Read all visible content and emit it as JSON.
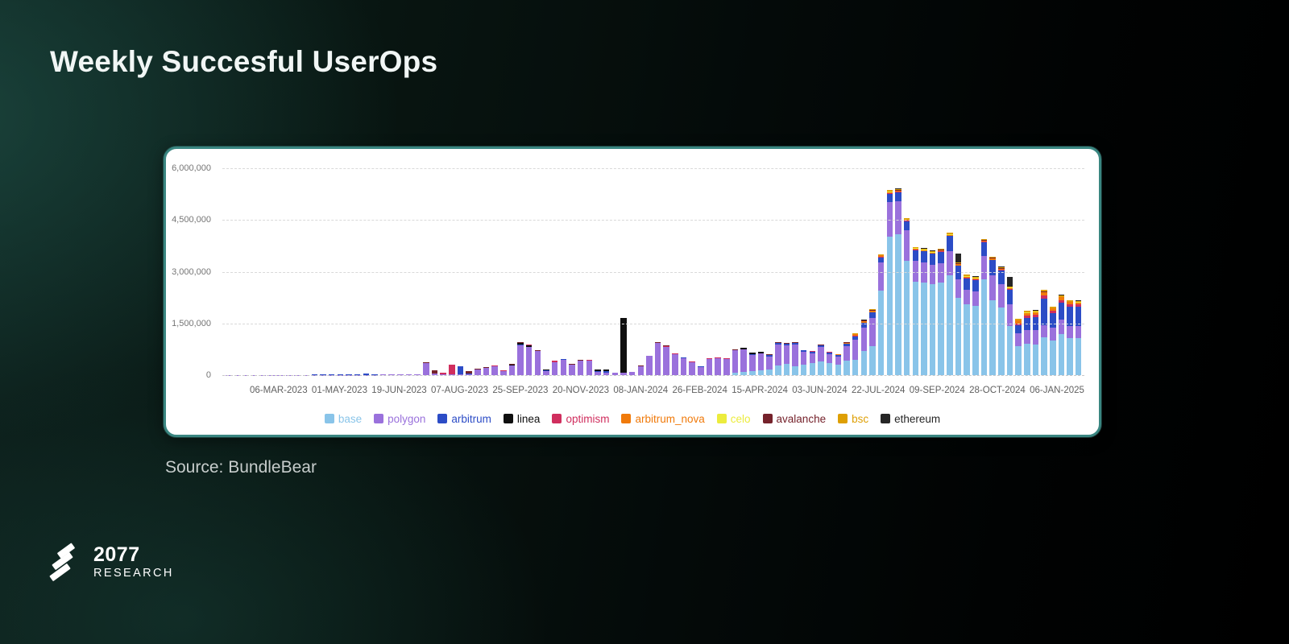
{
  "slide": {
    "title": "Weekly Succesful UserOps",
    "source": "Source: BundleBear",
    "logo": {
      "line1": "2077",
      "line2": "RESEARCH"
    }
  },
  "chart_data": {
    "type": "bar",
    "stacked": true,
    "title": "Weekly Succesful UserOps",
    "xlabel": "",
    "ylabel": "",
    "y_max": 6000000,
    "grid": "dashed-horizontal",
    "legend_position": "bottom",
    "y_ticks": [
      {
        "value": 6000000,
        "label": "6,000,000"
      },
      {
        "value": 4500000,
        "label": "4,500,000"
      },
      {
        "value": 3000000,
        "label": "3,000,000"
      },
      {
        "value": 1500000,
        "label": "1,500,000"
      },
      {
        "value": 0,
        "label": "0"
      }
    ],
    "x_tick_labels": [
      "06-MAR-2023",
      "01-MAY-2023",
      "19-JUN-2023",
      "07-AUG-2023",
      "25-SEP-2023",
      "20-NOV-2023",
      "08-JAN-2024",
      "26-FEB-2024",
      "15-APR-2024",
      "03-JUN-2024",
      "22-JUL-2024",
      "09-SEP-2024",
      "28-OCT-2024",
      "06-JAN-2025"
    ],
    "categories": [
      "20-FEB-2023",
      "27-FEB-2023",
      "06-MAR-2023",
      "13-MAR-2023",
      "20-MAR-2023",
      "27-MAR-2023",
      "03-APR-2023",
      "10-APR-2023",
      "17-APR-2023",
      "24-APR-2023",
      "01-MAY-2023",
      "08-MAY-2023",
      "15-MAY-2023",
      "22-MAY-2023",
      "29-MAY-2023",
      "05-JUN-2023",
      "12-JUN-2023",
      "19-JUN-2023",
      "26-JUN-2023",
      "03-JUL-2023",
      "10-JUL-2023",
      "17-JUL-2023",
      "24-JUL-2023",
      "31-JUL-2023",
      "07-AUG-2023",
      "14-AUG-2023",
      "21-AUG-2023",
      "28-AUG-2023",
      "04-SEP-2023",
      "11-SEP-2023",
      "18-SEP-2023",
      "25-SEP-2023",
      "02-OCT-2023",
      "09-OCT-2023",
      "16-OCT-2023",
      "23-OCT-2023",
      "30-OCT-2023",
      "06-NOV-2023",
      "13-NOV-2023",
      "20-NOV-2023",
      "27-NOV-2023",
      "04-DEC-2023",
      "11-DEC-2023",
      "18-DEC-2023",
      "25-DEC-2023",
      "01-JAN-2024",
      "08-JAN-2024",
      "15-JAN-2024",
      "22-JAN-2024",
      "29-JAN-2024",
      "05-FEB-2024",
      "12-FEB-2024",
      "19-FEB-2024",
      "26-FEB-2024",
      "04-MAR-2024",
      "11-MAR-2024",
      "18-MAR-2024",
      "25-MAR-2024",
      "01-APR-2024",
      "08-APR-2024",
      "15-APR-2024",
      "22-APR-2024",
      "29-APR-2024",
      "06-MAY-2024",
      "13-MAY-2024",
      "20-MAY-2024",
      "27-MAY-2024",
      "03-JUN-2024",
      "10-JUN-2024",
      "17-JUN-2024",
      "24-JUN-2024",
      "01-JUL-2024",
      "08-JUL-2024",
      "15-JUL-2024",
      "22-JUL-2024",
      "29-JUL-2024",
      "05-AUG-2024",
      "12-AUG-2024",
      "19-AUG-2024",
      "26-AUG-2024",
      "02-SEP-2024",
      "09-SEP-2024",
      "16-SEP-2024",
      "23-SEP-2024",
      "30-SEP-2024",
      "07-OCT-2024",
      "14-OCT-2024",
      "21-OCT-2024",
      "28-OCT-2024",
      "04-NOV-2024",
      "11-NOV-2024",
      "18-NOV-2024",
      "25-NOV-2024",
      "02-DEC-2024",
      "09-DEC-2024",
      "16-DEC-2024",
      "23-DEC-2024",
      "30-DEC-2024",
      "06-JAN-2025",
      "13-JAN-2025"
    ],
    "series": [
      {
        "name": "base",
        "color": "#89C4E9",
        "values": [
          0,
          0,
          0,
          0,
          0,
          0,
          0,
          0,
          0,
          0,
          0,
          0,
          0,
          0,
          0,
          0,
          0,
          0,
          0,
          0,
          0,
          0,
          0,
          0,
          0,
          0,
          0,
          0,
          0,
          0,
          0,
          0,
          0,
          0,
          0,
          0,
          0,
          0,
          0,
          0,
          0,
          0,
          0,
          0,
          0,
          0,
          0,
          0,
          0,
          0,
          0,
          0,
          0,
          0,
          0,
          0,
          0,
          0,
          0,
          60000,
          105000,
          125000,
          150000,
          160000,
          290000,
          330000,
          260000,
          305000,
          350000,
          395000,
          345000,
          310000,
          415000,
          450000,
          700000,
          850000,
          2450000,
          4020000,
          4080000,
          3320000,
          2720000,
          2680000,
          2630000,
          2680000,
          2900000,
          2250000,
          2050000,
          2000000,
          2780000,
          2180000,
          1950000,
          1430000,
          840000,
          900000,
          880000,
          1100000,
          1000000,
          1180000,
          1080000,
          1070000
        ]
      },
      {
        "name": "polygon",
        "color": "#9A71DC",
        "values": [
          4000,
          5000,
          6000,
          6000,
          7000,
          7000,
          8000,
          8000,
          9000,
          9000,
          10000,
          10000,
          10000,
          11000,
          11000,
          12000,
          12000,
          12000,
          13000,
          13000,
          14000,
          14000,
          15000,
          340000,
          40000,
          15000,
          25000,
          25000,
          35000,
          160000,
          205000,
          255000,
          120000,
          270000,
          870000,
          810000,
          690000,
          125000,
          370000,
          450000,
          300000,
          410000,
          420000,
          95000,
          60000,
          62000,
          60000,
          88000,
          255000,
          555000,
          925000,
          815000,
          605000,
          495000,
          375000,
          245000,
          465000,
          490000,
          465000,
          655000,
          635000,
          465000,
          475000,
          385000,
          595000,
          535000,
          625000,
          365000,
          290000,
          420000,
          270000,
          235000,
          425000,
          570000,
          680000,
          800000,
          820000,
          990000,
          965000,
          880000,
          600000,
          590000,
          560000,
          570000,
          700000,
          530000,
          430000,
          430000,
          680000,
          720000,
          680000,
          620000,
          370000,
          400000,
          420000,
          350000,
          380000,
          440000,
          350000,
          345000
        ]
      },
      {
        "name": "arbitrum",
        "color": "#2C4CC6",
        "values": [
          1000,
          1000,
          2000,
          2000,
          2000,
          2000,
          2000,
          3000,
          3000,
          3000,
          3000,
          3000,
          4000,
          4000,
          4000,
          4000,
          28000,
          5000,
          5000,
          5000,
          5000,
          6000,
          6000,
          6000,
          5000,
          5000,
          6000,
          225000,
          8000,
          8000,
          8000,
          8000,
          8000,
          8000,
          10000,
          10000,
          10000,
          8000,
          8000,
          8000,
          8000,
          8000,
          8000,
          30000,
          62000,
          8000,
          10000,
          8000,
          8000,
          8000,
          10000,
          10000,
          10000,
          10000,
          10000,
          10000,
          10000,
          10000,
          12000,
          15000,
          15000,
          15000,
          15000,
          45000,
          50000,
          50000,
          50000,
          45000,
          45000,
          45000,
          45000,
          40000,
          60000,
          105000,
          130000,
          165000,
          145000,
          255000,
          260000,
          260000,
          310000,
          320000,
          330000,
          330000,
          430000,
          390000,
          330000,
          330000,
          390000,
          430000,
          400000,
          420000,
          230000,
          360000,
          380000,
          780000,
          420000,
          480000,
          560000,
          570000
        ]
      },
      {
        "name": "linea",
        "color": "#0F0F0F",
        "values": [
          0,
          0,
          0,
          0,
          0,
          0,
          0,
          0,
          0,
          0,
          0,
          0,
          0,
          0,
          0,
          0,
          0,
          0,
          0,
          0,
          0,
          0,
          0,
          0,
          0,
          0,
          0,
          0,
          0,
          0,
          0,
          0,
          0,
          25000,
          55000,
          50000,
          0,
          20000,
          0,
          0,
          0,
          0,
          0,
          38000,
          40000,
          0,
          1590000,
          0,
          0,
          0,
          0,
          0,
          0,
          0,
          0,
          0,
          0,
          0,
          0,
          0,
          35000,
          38000,
          30000,
          0,
          0,
          0,
          0,
          0,
          0,
          0,
          0,
          0,
          0,
          0,
          0,
          0,
          0,
          0,
          0,
          0,
          0,
          0,
          0,
          0,
          0,
          0,
          0,
          0,
          0,
          0,
          0,
          0,
          0,
          0,
          0,
          0,
          0,
          0,
          0,
          0
        ]
      },
      {
        "name": "optimism",
        "color": "#D02E5E",
        "values": [
          0,
          0,
          0,
          0,
          0,
          0,
          0,
          0,
          0,
          0,
          0,
          0,
          0,
          0,
          0,
          0,
          0,
          0,
          0,
          0,
          0,
          0,
          0,
          0,
          0,
          40000,
          270000,
          8000,
          8000,
          8000,
          8000,
          18000,
          8000,
          8000,
          8000,
          8000,
          8000,
          5000,
          35000,
          8000,
          8000,
          8000,
          8000,
          5000,
          5000,
          5000,
          5000,
          5000,
          5000,
          5000,
          5000,
          5000,
          5000,
          5000,
          5000,
          5000,
          5000,
          5000,
          5000,
          5000,
          5000,
          5000,
          5000,
          5000,
          5000,
          5000,
          5000,
          5000,
          5000,
          8000,
          8000,
          8000,
          8000,
          10000,
          10000,
          12000,
          12000,
          12000,
          12000,
          12000,
          12000,
          12000,
          12000,
          12000,
          15000,
          15000,
          15000,
          15000,
          15000,
          20000,
          20000,
          20000,
          60000,
          70000,
          70000,
          80000,
          70000,
          75000,
          70000,
          65000
        ]
      },
      {
        "name": "arbitrum_nova",
        "color": "#F07A0B",
        "values": [
          0,
          0,
          0,
          0,
          0,
          0,
          0,
          0,
          0,
          0,
          0,
          0,
          0,
          0,
          0,
          0,
          0,
          0,
          0,
          0,
          0,
          0,
          0,
          0,
          0,
          0,
          0,
          0,
          0,
          0,
          0,
          0,
          0,
          0,
          0,
          0,
          0,
          0,
          0,
          0,
          0,
          0,
          0,
          0,
          0,
          0,
          0,
          0,
          0,
          0,
          0,
          0,
          0,
          0,
          0,
          0,
          0,
          0,
          0,
          0,
          0,
          0,
          0,
          0,
          0,
          0,
          0,
          0,
          0,
          8000,
          8000,
          8000,
          35000,
          50000,
          45000,
          45000,
          45000,
          25000,
          25000,
          25000,
          25000,
          25000,
          25000,
          25000,
          25000,
          30000,
          30000,
          30000,
          30000,
          30000,
          30000,
          35000,
          80000,
          80000,
          80000,
          95000,
          65000,
          85000,
          60000,
          60000
        ]
      },
      {
        "name": "celo",
        "color": "#ECEC3D",
        "values": [
          0,
          0,
          0,
          0,
          0,
          0,
          0,
          0,
          0,
          0,
          0,
          0,
          0,
          0,
          0,
          0,
          0,
          0,
          0,
          0,
          0,
          0,
          0,
          0,
          0,
          0,
          0,
          0,
          0,
          0,
          0,
          0,
          0,
          0,
          0,
          0,
          0,
          0,
          0,
          0,
          0,
          0,
          0,
          0,
          0,
          0,
          0,
          0,
          0,
          0,
          0,
          0,
          0,
          0,
          0,
          0,
          0,
          0,
          0,
          0,
          0,
          0,
          0,
          0,
          0,
          0,
          0,
          0,
          0,
          0,
          0,
          0,
          0,
          8000,
          8000,
          8000,
          8000,
          12000,
          12000,
          12000,
          12000,
          12000,
          12000,
          12000,
          12000,
          12000,
          12000,
          12000,
          12000,
          12000,
          12000,
          12000,
          8000,
          8000,
          8000,
          8000,
          8000,
          8000,
          8000,
          8000
        ]
      },
      {
        "name": "avalanche",
        "color": "#75222B",
        "values": [
          0,
          0,
          0,
          0,
          0,
          0,
          0,
          0,
          0,
          0,
          0,
          0,
          0,
          0,
          0,
          0,
          0,
          0,
          0,
          0,
          0,
          0,
          0,
          18000,
          85000,
          10000,
          12000,
          10000,
          70000,
          22000,
          25000,
          10000,
          8000,
          8000,
          8000,
          8000,
          25000,
          5000,
          8000,
          8000,
          15000,
          15000,
          8000,
          5000,
          5000,
          5000,
          5000,
          5000,
          5000,
          5000,
          18000,
          25000,
          8000,
          8000,
          8000,
          8000,
          8000,
          8000,
          18000,
          18000,
          8000,
          8000,
          8000,
          8000,
          8000,
          8000,
          8000,
          8000,
          8000,
          8000,
          8000,
          8000,
          8000,
          8000,
          8000,
          8000,
          8000,
          8000,
          8000,
          8000,
          8000,
          8000,
          8000,
          8000,
          8000,
          8000,
          8000,
          8000,
          8000,
          8000,
          8000,
          8000,
          8000,
          8000,
          8000,
          8000,
          8000,
          8000,
          8000,
          8000
        ]
      },
      {
        "name": "bsc",
        "color": "#DE9F04",
        "values": [
          0,
          0,
          0,
          0,
          0,
          0,
          0,
          0,
          0,
          0,
          0,
          0,
          0,
          0,
          0,
          0,
          0,
          0,
          0,
          0,
          0,
          0,
          0,
          0,
          0,
          0,
          0,
          0,
          0,
          0,
          0,
          0,
          0,
          0,
          0,
          0,
          0,
          0,
          0,
          0,
          0,
          0,
          0,
          0,
          0,
          0,
          0,
          0,
          0,
          0,
          0,
          0,
          0,
          0,
          0,
          0,
          0,
          0,
          0,
          0,
          0,
          0,
          0,
          0,
          0,
          0,
          0,
          0,
          0,
          0,
          0,
          0,
          8000,
          18000,
          18000,
          18000,
          18000,
          40000,
          40000,
          40000,
          30000,
          30000,
          30000,
          30000,
          35000,
          35000,
          35000,
          35000,
          35000,
          35000,
          35000,
          35000,
          35000,
          35000,
          35000,
          45000,
          35000,
          45000,
          35000,
          35000
        ]
      },
      {
        "name": "ethereum",
        "color": "#262626",
        "values": [
          0,
          0,
          0,
          0,
          0,
          0,
          0,
          0,
          0,
          0,
          0,
          0,
          0,
          0,
          0,
          0,
          0,
          0,
          0,
          0,
          0,
          0,
          0,
          0,
          0,
          0,
          0,
          0,
          0,
          0,
          0,
          0,
          0,
          0,
          0,
          0,
          0,
          0,
          0,
          0,
          0,
          0,
          0,
          0,
          0,
          0,
          0,
          0,
          0,
          0,
          0,
          0,
          0,
          0,
          0,
          0,
          0,
          0,
          0,
          0,
          0,
          0,
          5000,
          5000,
          5000,
          5000,
          5000,
          5000,
          5000,
          5000,
          5000,
          5000,
          5000,
          5000,
          5000,
          5000,
          5000,
          8000,
          8000,
          8000,
          8000,
          8000,
          8000,
          8000,
          8000,
          250000,
          8000,
          8000,
          8000,
          8000,
          8000,
          280000,
          5000,
          5000,
          5000,
          5000,
          5000,
          5000,
          5000,
          5000
        ]
      }
    ]
  }
}
